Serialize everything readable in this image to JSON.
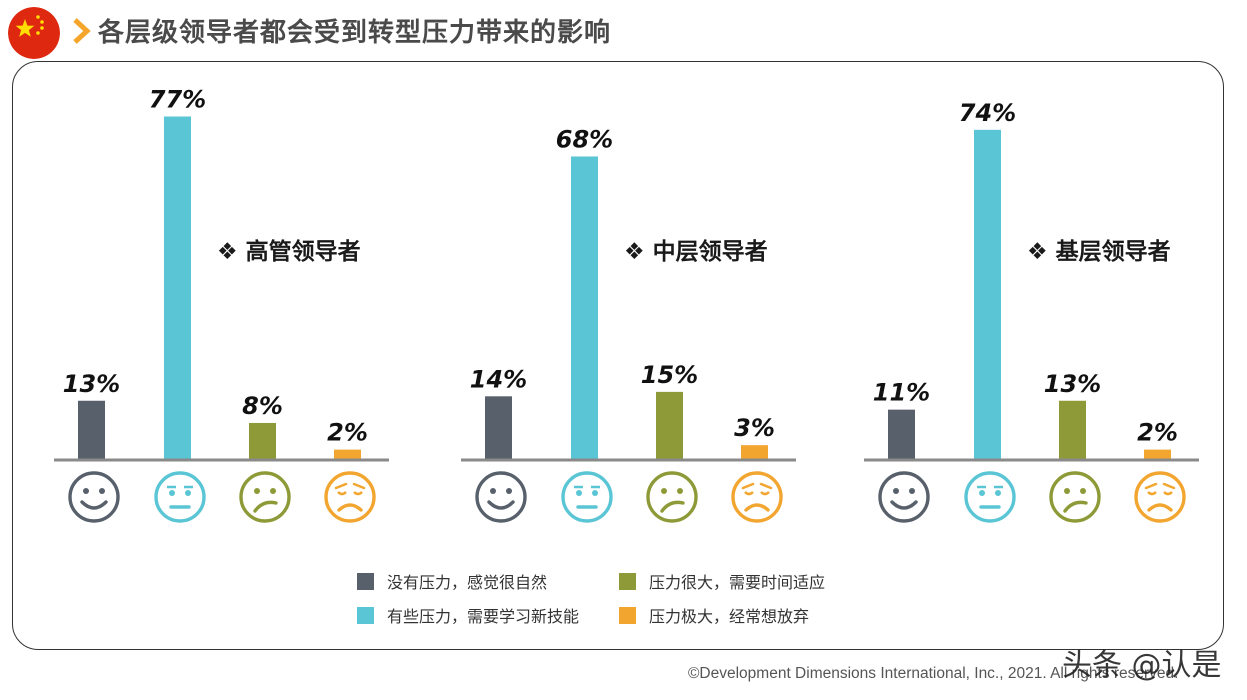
{
  "header": {
    "title": "各层级领导者都会受到转型压力带来的影响"
  },
  "colors": {
    "natural": "#57606b",
    "some": "#5ac5d5",
    "high": "#8e9a38",
    "extreme": "#f2a52f",
    "arrow": "#f4a52a"
  },
  "chart_data": [
    {
      "type": "bar",
      "title": "❖ 高管领导者",
      "categories": [
        "没有压力，感觉很自然",
        "有些压力，需要学习新技能",
        "压力很大，需要时间适应",
        "压力极大，经常想放弃"
      ],
      "values": [
        13,
        77,
        8,
        2
      ],
      "labels": [
        "13%",
        "77%",
        "8%",
        "2%"
      ],
      "ylim": [
        0,
        77
      ]
    },
    {
      "type": "bar",
      "title": "❖ 中层领导者",
      "categories": [
        "没有压力，感觉很自然",
        "有些压力，需要学习新技能",
        "压力很大，需要时间适应",
        "压力极大，经常想放弃"
      ],
      "values": [
        14,
        68,
        15,
        3
      ],
      "labels": [
        "14%",
        "68%",
        "15%",
        "3%"
      ],
      "ylim": [
        0,
        77
      ]
    },
    {
      "type": "bar",
      "title": "❖ 基层领导者",
      "categories": [
        "没有压力，感觉很自然",
        "有些压力，需要学习新技能",
        "压力很大，需要时间适应",
        "压力极大，经常想放弃"
      ],
      "values": [
        11,
        74,
        13,
        2
      ],
      "labels": [
        "11%",
        "74%",
        "13%",
        "2%"
      ],
      "ylim": [
        0,
        77
      ]
    }
  ],
  "legend": [
    {
      "label": "没有压力，感觉很自然",
      "color": "#57606b"
    },
    {
      "label": "压力很大，需要时间适应",
      "color": "#8e9a38"
    },
    {
      "label": "有些压力，需要学习新技能",
      "color": "#5ac5d5"
    },
    {
      "label": "压力极大，经常想放弃",
      "color": "#f2a52f"
    }
  ],
  "footer": {
    "credit": "©Development Dimensions International, Inc., 2021. All rights reserved.",
    "watermark": "头条 @认是"
  }
}
